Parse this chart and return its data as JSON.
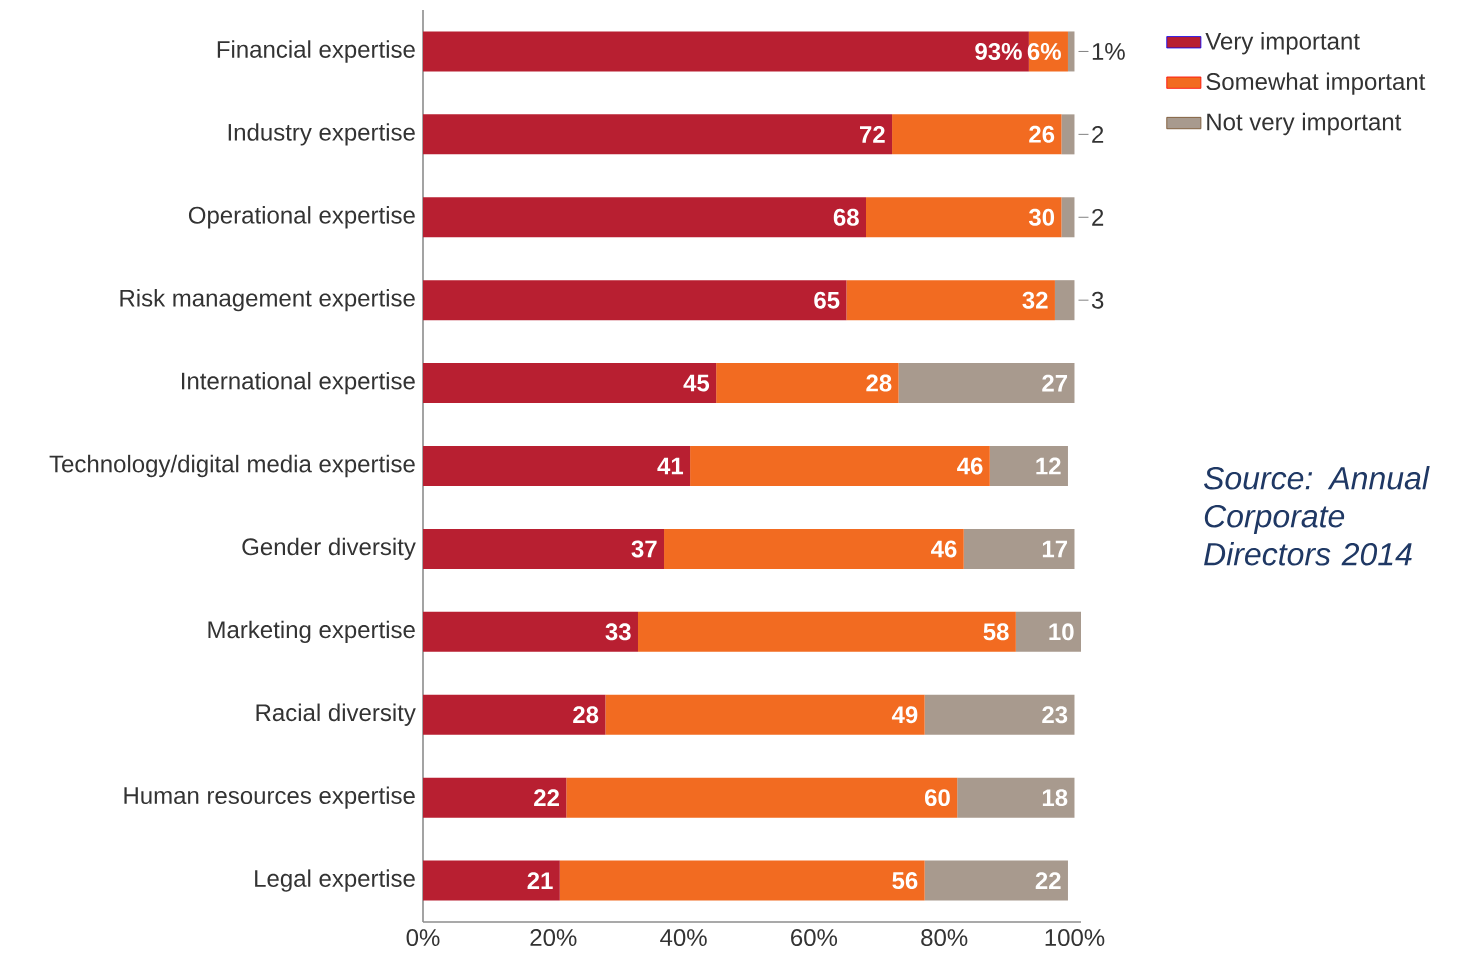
{
  "chart_data": {
    "type": "bar",
    "orientation": "horizontal",
    "stacked": true,
    "categories": [
      "Financial expertise",
      "Industry expertise",
      "Operational expertise",
      "Risk management expertise",
      "International expertise",
      "Technology/digital media expertise",
      "Gender diversity",
      "Marketing expertise",
      "Racial diversity",
      "Human resources expertise",
      "Legal expertise"
    ],
    "series": [
      {
        "name": "Very important",
        "color": "#b81f31",
        "values": [
          93,
          72,
          68,
          65,
          45,
          41,
          37,
          33,
          28,
          22,
          21
        ],
        "value_labels": [
          "93%",
          "72",
          "68",
          "65",
          "45",
          "41",
          "37",
          "33",
          "28",
          "22",
          "21"
        ]
      },
      {
        "name": "Somewhat important",
        "color": "#f26b21",
        "values": [
          6,
          26,
          30,
          32,
          28,
          46,
          46,
          58,
          49,
          60,
          56
        ],
        "value_labels": [
          "6%",
          "26",
          "30",
          "32",
          "28",
          "46",
          "46",
          "58",
          "49",
          "60",
          "56"
        ]
      },
      {
        "name": "Not very important",
        "color": "#a89a8e",
        "values": [
          1,
          2,
          2,
          3,
          27,
          12,
          17,
          10,
          23,
          18,
          22
        ],
        "value_labels": [
          "1%",
          "2",
          "2",
          "3",
          "27",
          "12",
          "17",
          "10",
          "23",
          "18",
          "22"
        ]
      }
    ],
    "xlim": [
      0,
      101
    ],
    "xticks": [
      {
        "value": 0,
        "label": "0%"
      },
      {
        "value": 20,
        "label": "20%"
      },
      {
        "value": 40,
        "label": "40%"
      },
      {
        "value": 60,
        "label": "60%"
      },
      {
        "value": 80,
        "label": "80%"
      },
      {
        "value": 100,
        "label": "100%"
      }
    ],
    "legend": "top right",
    "annotations": [
      "Source: Annual Corporate Directors 2014"
    ]
  }
}
